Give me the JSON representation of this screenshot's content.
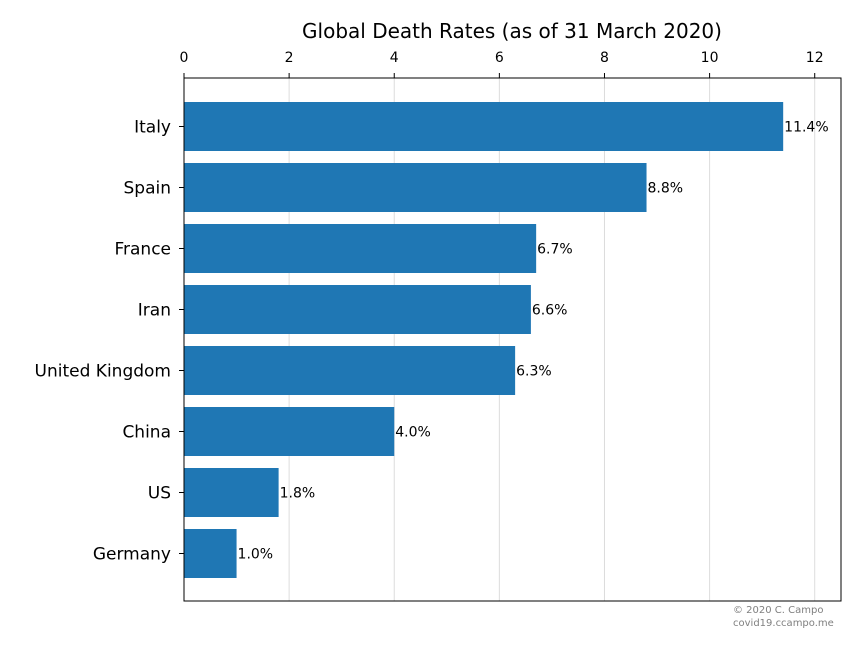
{
  "chart_data": {
    "type": "bar",
    "orientation": "horizontal",
    "title": "Global Death Rates (as of 31 March 2020)",
    "xlabel": "",
    "ylabel": "",
    "xlim": [
      0,
      12.5
    ],
    "xticks": [
      0,
      2,
      4,
      6,
      8,
      10,
      12
    ],
    "x_axis_position": "top",
    "grid": "vertical",
    "categories": [
      "Italy",
      "Spain",
      "France",
      "Iran",
      "United Kingdom",
      "China",
      "US",
      "Germany"
    ],
    "values": [
      11.4,
      8.8,
      6.7,
      6.6,
      6.3,
      4.0,
      1.8,
      1.0
    ],
    "data_labels": [
      "11.4%",
      "8.8%",
      "6.7%",
      "6.6%",
      "6.3%",
      "4.0%",
      "1.8%",
      "1.0%"
    ],
    "bar_color": "#1f77b4",
    "grid_color": "#dcdcdc"
  },
  "credit": {
    "line1": "© 2020 C. Campo",
    "line2": "covid19.ccampo.me"
  }
}
